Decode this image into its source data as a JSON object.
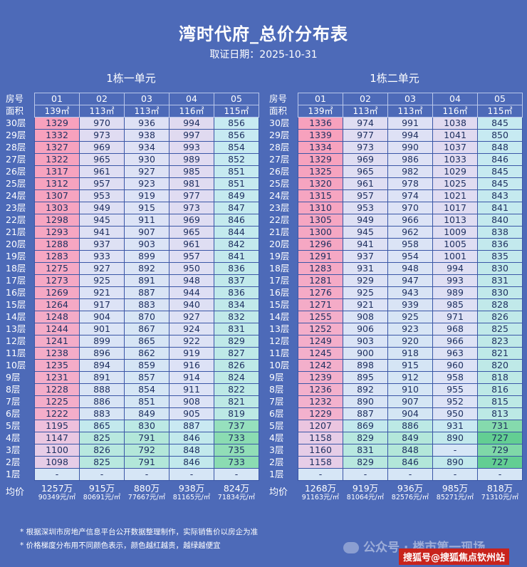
{
  "title": "湾时代府_总价分布表",
  "subtitle": "取证日期：2025-10-31",
  "units": [
    {
      "name": "1栋一单元",
      "room_label": "房号",
      "area_label": "面积",
      "rooms": [
        "01",
        "02",
        "03",
        "04",
        "05"
      ],
      "areas": [
        "139㎡",
        "113㎡",
        "113㎡",
        "116㎡",
        "115㎡"
      ],
      "floors": [
        {
          "floor": "30层",
          "prices": [
            "1329",
            "970",
            "936",
            "994",
            "856"
          ]
        },
        {
          "floor": "29层",
          "prices": [
            "1332",
            "973",
            "938",
            "997",
            "856"
          ]
        },
        {
          "floor": "28层",
          "prices": [
            "1327",
            "969",
            "934",
            "993",
            "854"
          ]
        },
        {
          "floor": "27层",
          "prices": [
            "1322",
            "965",
            "930",
            "989",
            "852"
          ]
        },
        {
          "floor": "26层",
          "prices": [
            "1317",
            "961",
            "927",
            "985",
            "851"
          ]
        },
        {
          "floor": "25层",
          "prices": [
            "1312",
            "957",
            "923",
            "981",
            "851"
          ]
        },
        {
          "floor": "24层",
          "prices": [
            "1307",
            "953",
            "919",
            "977",
            "849"
          ]
        },
        {
          "floor": "23层",
          "prices": [
            "1303",
            "949",
            "915",
            "973",
            "847"
          ]
        },
        {
          "floor": "22层",
          "prices": [
            "1298",
            "945",
            "911",
            "969",
            "846"
          ]
        },
        {
          "floor": "21层",
          "prices": [
            "1293",
            "941",
            "907",
            "965",
            "844"
          ]
        },
        {
          "floor": "20层",
          "prices": [
            "1288",
            "937",
            "903",
            "961",
            "842"
          ]
        },
        {
          "floor": "19层",
          "prices": [
            "1283",
            "933",
            "899",
            "957",
            "841"
          ]
        },
        {
          "floor": "18层",
          "prices": [
            "1275",
            "927",
            "892",
            "950",
            "836"
          ]
        },
        {
          "floor": "17层",
          "prices": [
            "1273",
            "925",
            "891",
            "948",
            "837"
          ]
        },
        {
          "floor": "16层",
          "prices": [
            "1269",
            "921",
            "887",
            "944",
            "836"
          ]
        },
        {
          "floor": "15层",
          "prices": [
            "1264",
            "917",
            "883",
            "940",
            "834"
          ]
        },
        {
          "floor": "14层",
          "prices": [
            "1248",
            "904",
            "870",
            "927",
            "832"
          ]
        },
        {
          "floor": "13层",
          "prices": [
            "1244",
            "901",
            "867",
            "924",
            "831"
          ]
        },
        {
          "floor": "12层",
          "prices": [
            "1241",
            "899",
            "865",
            "922",
            "829"
          ]
        },
        {
          "floor": "11层",
          "prices": [
            "1238",
            "896",
            "862",
            "919",
            "827"
          ]
        },
        {
          "floor": "10层",
          "prices": [
            "1235",
            "894",
            "859",
            "916",
            "826"
          ]
        },
        {
          "floor": "9层",
          "prices": [
            "1231",
            "891",
            "857",
            "914",
            "824"
          ]
        },
        {
          "floor": "8层",
          "prices": [
            "1228",
            "888",
            "854",
            "911",
            "822"
          ]
        },
        {
          "floor": "7层",
          "prices": [
            "1225",
            "886",
            "851",
            "908",
            "821"
          ]
        },
        {
          "floor": "6层",
          "prices": [
            "1222",
            "883",
            "849",
            "905",
            "819"
          ]
        },
        {
          "floor": "5层",
          "prices": [
            "1195",
            "865",
            "830",
            "887",
            "737"
          ]
        },
        {
          "floor": "4层",
          "prices": [
            "1147",
            "825",
            "791",
            "846",
            "733"
          ]
        },
        {
          "floor": "3层",
          "prices": [
            "1100",
            "826",
            "792",
            "848",
            "735"
          ]
        },
        {
          "floor": "2层",
          "prices": [
            "1098",
            "825",
            "791",
            "846",
            "733"
          ]
        },
        {
          "floor": "1层",
          "prices": [
            "-",
            "-",
            "-",
            "-",
            "-"
          ]
        }
      ],
      "avg_label": "均价",
      "avg_totals": [
        "1257万",
        "915万",
        "880万",
        "938万",
        "824万"
      ],
      "avg_units": [
        "90349元/㎡",
        "80691元/㎡",
        "77667元/㎡",
        "81165元/㎡",
        "71834元/㎡"
      ]
    },
    {
      "name": "1栋二单元",
      "room_label": "房号",
      "area_label": "面积",
      "rooms": [
        "01",
        "02",
        "03",
        "04",
        "05"
      ],
      "areas": [
        "139㎡",
        "113㎡",
        "113㎡",
        "116㎡",
        "115㎡"
      ],
      "floors": [
        {
          "floor": "30层",
          "prices": [
            "1336",
            "974",
            "991",
            "1038",
            "845"
          ]
        },
        {
          "floor": "29层",
          "prices": [
            "1339",
            "977",
            "994",
            "1041",
            "850"
          ]
        },
        {
          "floor": "28层",
          "prices": [
            "1334",
            "973",
            "990",
            "1037",
            "848"
          ]
        },
        {
          "floor": "27层",
          "prices": [
            "1329",
            "969",
            "986",
            "1033",
            "846"
          ]
        },
        {
          "floor": "26层",
          "prices": [
            "1325",
            "965",
            "982",
            "1029",
            "845"
          ]
        },
        {
          "floor": "25层",
          "prices": [
            "1320",
            "961",
            "978",
            "1025",
            "845"
          ]
        },
        {
          "floor": "24层",
          "prices": [
            "1315",
            "957",
            "974",
            "1021",
            "843"
          ]
        },
        {
          "floor": "23层",
          "prices": [
            "1310",
            "953",
            "970",
            "1017",
            "841"
          ]
        },
        {
          "floor": "22层",
          "prices": [
            "1305",
            "949",
            "966",
            "1013",
            "840"
          ]
        },
        {
          "floor": "21层",
          "prices": [
            "1300",
            "945",
            "962",
            "1009",
            "838"
          ]
        },
        {
          "floor": "20层",
          "prices": [
            "1296",
            "941",
            "958",
            "1005",
            "836"
          ]
        },
        {
          "floor": "19层",
          "prices": [
            "1291",
            "937",
            "954",
            "1001",
            "835"
          ]
        },
        {
          "floor": "18层",
          "prices": [
            "1283",
            "931",
            "948",
            "994",
            "830"
          ]
        },
        {
          "floor": "17层",
          "prices": [
            "1281",
            "929",
            "947",
            "993",
            "831"
          ]
        },
        {
          "floor": "16层",
          "prices": [
            "1276",
            "925",
            "943",
            "989",
            "830"
          ]
        },
        {
          "floor": "15层",
          "prices": [
            "1271",
            "921",
            "939",
            "985",
            "828"
          ]
        },
        {
          "floor": "14层",
          "prices": [
            "1255",
            "908",
            "925",
            "971",
            "826"
          ]
        },
        {
          "floor": "13层",
          "prices": [
            "1252",
            "906",
            "923",
            "968",
            "825"
          ]
        },
        {
          "floor": "12层",
          "prices": [
            "1249",
            "903",
            "920",
            "966",
            "823"
          ]
        },
        {
          "floor": "11层",
          "prices": [
            "1245",
            "900",
            "918",
            "963",
            "821"
          ]
        },
        {
          "floor": "10层",
          "prices": [
            "1242",
            "898",
            "915",
            "960",
            "820"
          ]
        },
        {
          "floor": "9层",
          "prices": [
            "1239",
            "895",
            "912",
            "958",
            "818"
          ]
        },
        {
          "floor": "8层",
          "prices": [
            "1236",
            "892",
            "910",
            "955",
            "816"
          ]
        },
        {
          "floor": "7层",
          "prices": [
            "1232",
            "890",
            "907",
            "952",
            "815"
          ]
        },
        {
          "floor": "6层",
          "prices": [
            "1229",
            "887",
            "904",
            "950",
            "813"
          ]
        },
        {
          "floor": "5层",
          "prices": [
            "1207",
            "869",
            "886",
            "931",
            "731"
          ]
        },
        {
          "floor": "4层",
          "prices": [
            "1158",
            "829",
            "849",
            "890",
            "727"
          ]
        },
        {
          "floor": "3层",
          "prices": [
            "1160",
            "831",
            "848",
            "-",
            "729"
          ]
        },
        {
          "floor": "2层",
          "prices": [
            "1158",
            "829",
            "846",
            "890",
            "727"
          ]
        },
        {
          "floor": "1层",
          "prices": [
            "-",
            "-",
            "-",
            "-",
            "-"
          ]
        }
      ],
      "avg_label": "均价",
      "avg_totals": [
        "1268万",
        "919万",
        "936万",
        "985万",
        "818万"
      ],
      "avg_units": [
        "91163元/㎡",
        "81064元/㎡",
        "82576元/㎡",
        "85271元/㎡",
        "71310元/㎡"
      ]
    }
  ],
  "notes": [
    "* 根据深圳市房地产信息平台公开数据整理制作，实际销售价以房企为准",
    "* 价格梯度分布用不同颜色表示，颜色越红越贵，越绿越便宜"
  ],
  "watermark": "公众号 · 楼市第一现场",
  "sohu_badge": "搜狐号@搜狐焦点钦州站",
  "colors": {
    "background": "#4d6ab8",
    "expensive": "#f7a1bd",
    "cheap": "#2cba6a",
    "empty": "#d6e6f6"
  }
}
